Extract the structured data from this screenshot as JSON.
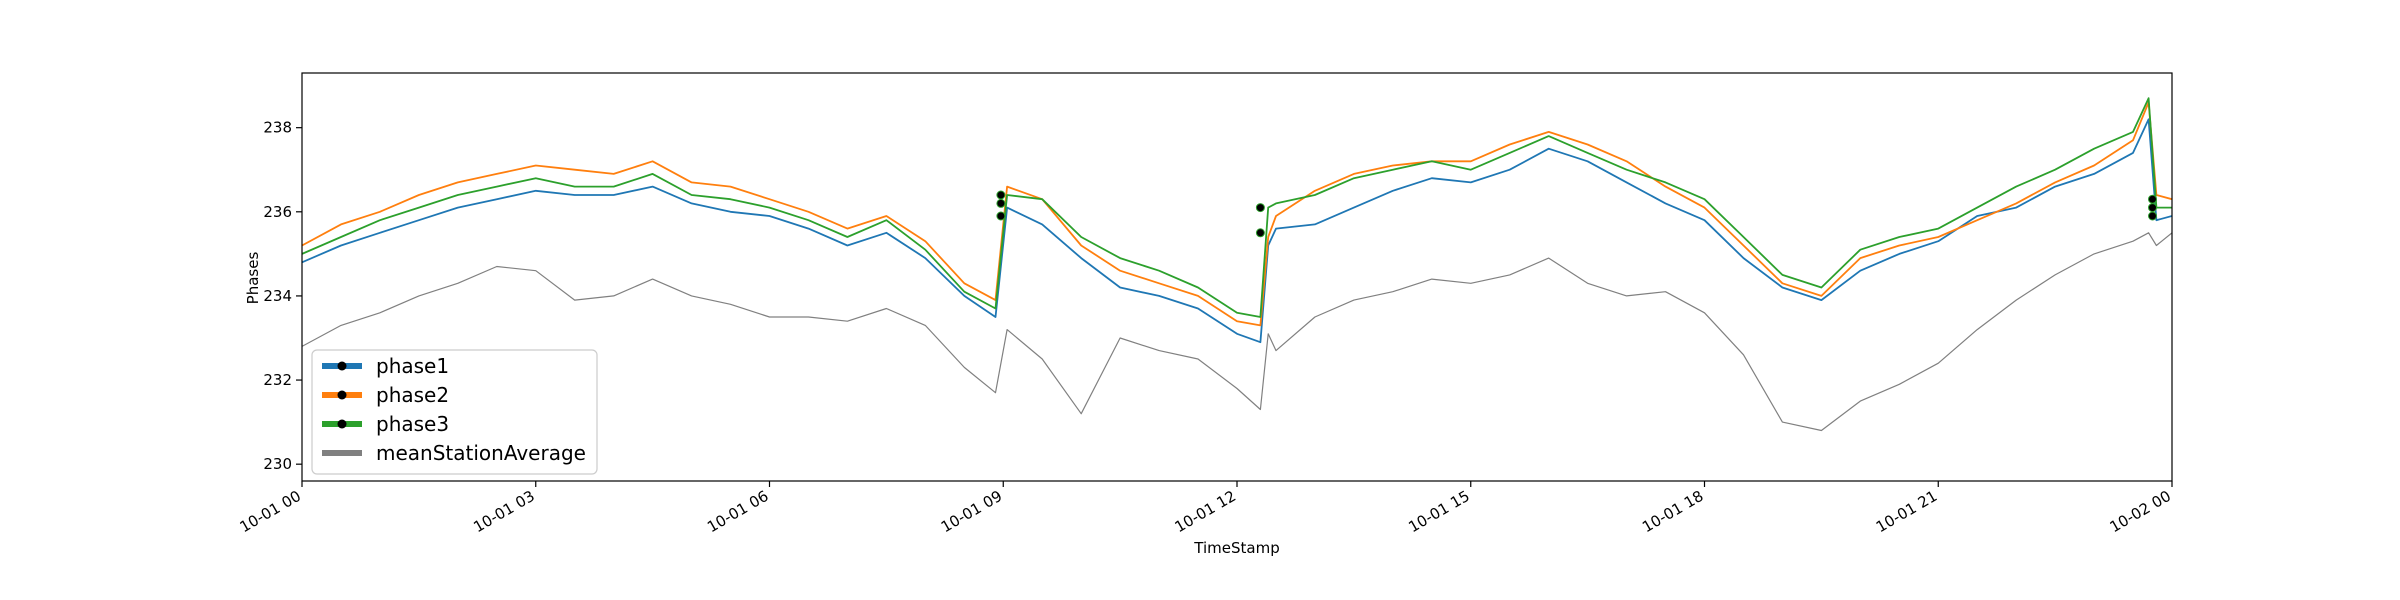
{
  "chart_data": {
    "type": "line",
    "title": "",
    "xlabel": "TimeStamp",
    "ylabel": "Phases",
    "ylim": [
      229.6,
      239.3
    ],
    "xlim": [
      "2024-10-01 00:00",
      "2024-10-02 00:00"
    ],
    "x_tick_labels": [
      "10-01 00",
      "10-01 03",
      "10-01 06",
      "10-01 09",
      "10-01 12",
      "10-01 15",
      "10-01 18",
      "10-01 21",
      "10-02 00"
    ],
    "y_ticks": [
      230,
      232,
      234,
      236,
      238
    ],
    "grid": false,
    "legend_position": "lower-left",
    "x_hours": [
      0,
      0.5,
      1,
      1.5,
      2,
      2.5,
      3,
      3.5,
      4,
      4.5,
      5,
      5.5,
      6,
      6.5,
      7,
      7.5,
      8,
      8.5,
      8.9,
      9.05,
      9.5,
      10,
      10.5,
      11,
      11.5,
      12,
      12.3,
      12.4,
      12.5,
      13,
      13.5,
      14,
      14.5,
      15,
      15.5,
      16,
      16.5,
      17,
      17.5,
      18,
      18.5,
      19,
      19.5,
      20,
      20.5,
      21,
      21.5,
      22,
      22.5,
      23,
      23.5,
      23.7,
      23.8,
      24
    ],
    "series": [
      {
        "name": "phase1",
        "color": "#1f77b4",
        "values": [
          234.8,
          235.2,
          235.5,
          235.8,
          236.1,
          236.3,
          236.5,
          236.4,
          236.4,
          236.6,
          236.2,
          236.0,
          235.9,
          235.6,
          235.2,
          235.5,
          234.9,
          234.0,
          233.5,
          236.1,
          235.7,
          234.9,
          234.2,
          234.0,
          233.7,
          233.1,
          232.9,
          235.2,
          235.6,
          235.7,
          236.1,
          236.5,
          236.8,
          236.7,
          237.0,
          237.5,
          237.2,
          236.7,
          236.2,
          235.8,
          234.9,
          234.2,
          233.9,
          234.6,
          235.0,
          235.3,
          235.9,
          236.1,
          236.6,
          236.9,
          237.4,
          238.2,
          235.8,
          235.9
        ]
      },
      {
        "name": "phase2",
        "color": "#ff7f0e",
        "values": [
          235.2,
          235.7,
          236.0,
          236.4,
          236.7,
          236.9,
          237.1,
          237.0,
          236.9,
          237.2,
          236.7,
          236.6,
          236.3,
          236.0,
          235.6,
          235.9,
          235.3,
          234.3,
          233.9,
          236.6,
          236.3,
          235.2,
          234.6,
          234.3,
          234.0,
          233.4,
          233.3,
          235.4,
          235.9,
          236.5,
          236.9,
          237.1,
          237.2,
          237.2,
          237.6,
          237.9,
          237.6,
          237.2,
          236.6,
          236.1,
          235.2,
          234.3,
          234.0,
          234.9,
          235.2,
          235.4,
          235.8,
          236.2,
          236.7,
          237.1,
          237.7,
          238.6,
          236.4,
          236.3
        ]
      },
      {
        "name": "phase3",
        "color": "#2ca02c",
        "values": [
          235.0,
          235.4,
          235.8,
          236.1,
          236.4,
          236.6,
          236.8,
          236.6,
          236.6,
          236.9,
          236.4,
          236.3,
          236.1,
          235.8,
          235.4,
          235.8,
          235.1,
          234.1,
          233.7,
          236.4,
          236.3,
          235.4,
          234.9,
          234.6,
          234.2,
          233.6,
          233.5,
          236.1,
          236.2,
          236.4,
          236.8,
          237.0,
          237.2,
          237.0,
          237.4,
          237.8,
          237.4,
          237.0,
          236.7,
          236.3,
          235.4,
          234.5,
          234.2,
          235.1,
          235.4,
          235.6,
          236.1,
          236.6,
          237.0,
          237.5,
          237.9,
          238.7,
          236.1,
          236.1
        ]
      },
      {
        "name": "meanStationAverage",
        "color": "#808080",
        "values": [
          232.8,
          233.3,
          233.6,
          234.0,
          234.3,
          234.7,
          234.6,
          233.9,
          234.0,
          234.4,
          234.0,
          233.8,
          233.5,
          233.5,
          233.4,
          233.7,
          233.3,
          232.3,
          231.7,
          233.2,
          232.5,
          231.2,
          233.0,
          232.7,
          232.5,
          231.8,
          231.3,
          233.1,
          232.7,
          233.5,
          233.9,
          234.1,
          234.4,
          234.3,
          234.5,
          234.9,
          234.3,
          234.0,
          234.1,
          233.6,
          232.6,
          231.0,
          230.8,
          231.5,
          231.9,
          232.4,
          233.2,
          233.9,
          234.5,
          235.0,
          235.3,
          235.5,
          235.2,
          235.5
        ]
      }
    ],
    "markers": [
      {
        "x_hours": 8.97,
        "values": [
          235.9,
          236.2,
          236.4
        ]
      },
      {
        "x_hours": 12.3,
        "values": [
          235.5,
          236.1
        ]
      },
      {
        "x_hours": 23.75,
        "values": [
          235.9,
          236.1,
          236.3
        ]
      }
    ]
  },
  "legend": {
    "entries": [
      "phase1",
      "phase2",
      "phase3",
      "meanStationAverage"
    ]
  }
}
